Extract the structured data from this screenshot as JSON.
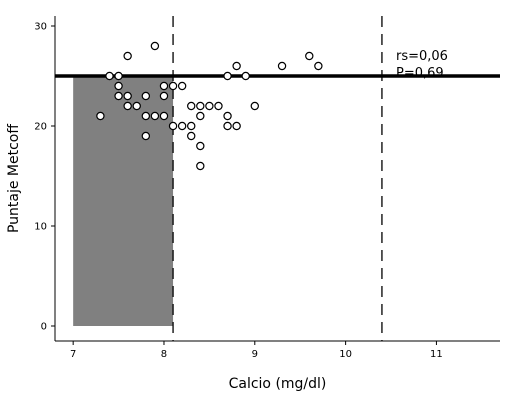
{
  "chart_data": {
    "type": "scatter",
    "title": "",
    "xlabel": "Calcio (mg/dl)",
    "ylabel": "Puntaje Metcoff",
    "xlim": [
      6.8,
      11.7
    ],
    "ylim": [
      -1.5,
      31
    ],
    "xticks": [
      7,
      8,
      9,
      10,
      11
    ],
    "yticks": [
      0,
      10,
      20,
      30
    ],
    "grid": false,
    "legend": "none",
    "points": [
      {
        "x": 7.3,
        "y": 21
      },
      {
        "x": 7.4,
        "y": 25
      },
      {
        "x": 7.5,
        "y": 25
      },
      {
        "x": 7.5,
        "y": 24
      },
      {
        "x": 7.5,
        "y": 23
      },
      {
        "x": 7.6,
        "y": 27
      },
      {
        "x": 7.6,
        "y": 23
      },
      {
        "x": 7.6,
        "y": 22
      },
      {
        "x": 7.7,
        "y": 22
      },
      {
        "x": 7.8,
        "y": 23
      },
      {
        "x": 7.8,
        "y": 21
      },
      {
        "x": 7.8,
        "y": 19
      },
      {
        "x": 7.9,
        "y": 28
      },
      {
        "x": 7.9,
        "y": 21
      },
      {
        "x": 8.0,
        "y": 24
      },
      {
        "x": 8.0,
        "y": 23
      },
      {
        "x": 8.0,
        "y": 21
      },
      {
        "x": 8.1,
        "y": 24
      },
      {
        "x": 8.1,
        "y": 20
      },
      {
        "x": 8.2,
        "y": 24
      },
      {
        "x": 8.2,
        "y": 20
      },
      {
        "x": 8.3,
        "y": 22
      },
      {
        "x": 8.3,
        "y": 20
      },
      {
        "x": 8.3,
        "y": 19
      },
      {
        "x": 8.4,
        "y": 22
      },
      {
        "x": 8.4,
        "y": 21
      },
      {
        "x": 8.4,
        "y": 18
      },
      {
        "x": 8.4,
        "y": 16
      },
      {
        "x": 8.5,
        "y": 22
      },
      {
        "x": 8.6,
        "y": 22
      },
      {
        "x": 8.7,
        "y": 25
      },
      {
        "x": 8.7,
        "y": 21
      },
      {
        "x": 8.7,
        "y": 20
      },
      {
        "x": 8.8,
        "y": 26
      },
      {
        "x": 8.8,
        "y": 20
      },
      {
        "x": 8.9,
        "y": 25
      },
      {
        "x": 9.0,
        "y": 22
      },
      {
        "x": 9.3,
        "y": 26
      },
      {
        "x": 9.6,
        "y": 27
      },
      {
        "x": 9.7,
        "y": 26
      }
    ],
    "shaded_region": {
      "x": [
        7.0,
        8.1
      ],
      "y": [
        0,
        25
      ],
      "color": "#808080"
    },
    "horizontal_line": {
      "y": 25,
      "color": "#000000"
    },
    "vertical_dashed_lines": [
      8.1,
      10.4
    ],
    "annotations": [
      "rs=0,06",
      "P=0,69"
    ]
  }
}
